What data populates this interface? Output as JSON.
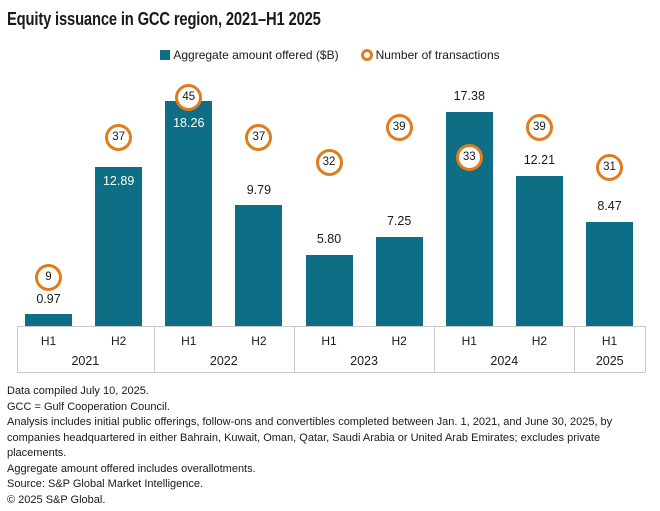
{
  "title": "Equity issuance in GCC region, 2021–H1 2025",
  "legend": {
    "items": [
      {
        "label": "Aggregate amount offered ($B)",
        "marker": "square"
      },
      {
        "label": "Number of transactions",
        "marker": "ring"
      }
    ]
  },
  "colors": {
    "bar_teal": "#0E6E86",
    "txn_orange": "#DF7D1E",
    "text_dark": "#1A1A1A",
    "label_on_bar": "#FFFFFF",
    "axis_line_gray": "#C9C9C9",
    "background": "#FFFFFF"
  },
  "chart_data": {
    "type": "bar",
    "title": "Equity issuance in GCC region, 2021–H1 2025",
    "categories": [
      "H1 2021",
      "H2 2021",
      "H1 2022",
      "H2 2022",
      "H1 2023",
      "H2 2023",
      "H1 2024",
      "H2 2024",
      "H1 2025"
    ],
    "x_groups": [
      {
        "year": "2021",
        "halves": [
          "H1",
          "H2"
        ]
      },
      {
        "year": "2022",
        "halves": [
          "H1",
          "H2"
        ]
      },
      {
        "year": "2023",
        "halves": [
          "H1",
          "H2"
        ]
      },
      {
        "year": "2024",
        "halves": [
          "H1",
          "H2"
        ]
      },
      {
        "year": "2025",
        "halves": [
          "H1"
        ]
      }
    ],
    "series": [
      {
        "name": "Aggregate amount offered ($B)",
        "type": "bar",
        "values": [
          0.97,
          12.89,
          18.26,
          9.79,
          5.8,
          7.25,
          17.38,
          12.21,
          8.47
        ],
        "value_labels": [
          "0.97",
          "12.89",
          "18.26",
          "9.79",
          "5.80",
          "7.25",
          "17.38",
          "12.21",
          "8.47"
        ],
        "label_inside_bar": [
          false,
          true,
          true,
          false,
          false,
          false,
          false,
          false,
          false
        ]
      },
      {
        "name": "Number of transactions",
        "type": "point-badge",
        "values": [
          9,
          37,
          45,
          37,
          32,
          39,
          33,
          39,
          31
        ]
      }
    ],
    "xlabel": "",
    "ylabel": "",
    "ylim": [
      0,
      19.6
    ],
    "y2lim": [
      0,
      62
    ],
    "grid": false,
    "legend_position": "top-center"
  },
  "footnotes": [
    "Data compiled July 10, 2025.",
    "GCC = Gulf Cooperation Council.",
    "Analysis includes initial public offerings, follow-ons and convertibles completed between Jan. 1, 2021, and June 30, 2025, by companies headquartered in either Bahrain, Kuwait, Oman, Qatar, Saudi Arabia or United Arab Emirates; excludes private placements.",
    "Aggregate amount offered includes overallotments.",
    "Source: S&P Global Market Intelligence.",
    "© 2025 S&P Global."
  ]
}
